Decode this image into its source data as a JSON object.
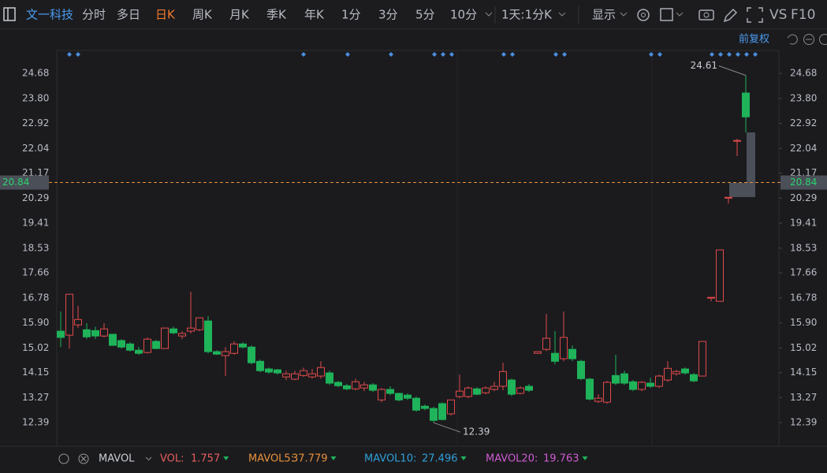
{
  "toolbar": {
    "symbol": "文一科技",
    "periods": [
      "分时",
      "多日",
      "日K",
      "周K",
      "月K",
      "季K",
      "年K",
      "1分",
      "3分",
      "5分",
      "10分"
    ],
    "selected_period": "日K",
    "multi_day": "1天:1分K",
    "display": "显示",
    "compare": "VS",
    "f10": "F10"
  },
  "adjust": "前复权",
  "indicator_bar": {
    "name": "MAVOL",
    "items": [
      {
        "label": "VOL:",
        "value": "1.757",
        "color": "#e85d5d"
      },
      {
        "label": "MAVOL5:",
        "value": "37.779",
        "color": "#e8903c"
      },
      {
        "label": "MAVOL10:",
        "value": "27.496",
        "color": "#2fa0d8"
      },
      {
        "label": "MAVOL20:",
        "value": "19.763",
        "color": "#cf5ad0"
      }
    ]
  },
  "chart_data": {
    "type": "candlestick",
    "categories": [
      null,
      null,
      null,
      null,
      null,
      null,
      null,
      null,
      null,
      null,
      null,
      null,
      null,
      null,
      null,
      null,
      null,
      null,
      null,
      null,
      null,
      null,
      null,
      null,
      null,
      null,
      null,
      null,
      null,
      null,
      null,
      null,
      null,
      null,
      null,
      null,
      null,
      null,
      null,
      null,
      null,
      null,
      null,
      null,
      null,
      null,
      null,
      null,
      null,
      null,
      null,
      null,
      null,
      null,
      null,
      null,
      null,
      null,
      null,
      null,
      null,
      null,
      null,
      null,
      null,
      null,
      null,
      null,
      null,
      null,
      null,
      null,
      null,
      null,
      null,
      null,
      null,
      null,
      null,
      null
    ],
    "open": [
      15.61,
      15.47,
      15.83,
      15.66,
      15.63,
      15.44,
      15.5,
      15.28,
      15.16,
      14.94,
      14.86,
      15.25,
      15.0,
      15.69,
      15.44,
      15.61,
      15.66,
      15.97,
      14.89,
      14.75,
      14.83,
      15.16,
      15.05,
      14.55,
      14.28,
      14.25,
      14.0,
      13.92,
      14.05,
      14.0,
      14.03,
      14.14,
      13.81,
      13.69,
      13.58,
      13.61,
      13.72,
      13.19,
      13.56,
      13.42,
      13.36,
      13.25,
      12.97,
      12.89,
      13.06,
      12.7,
      13.31,
      13.31,
      13.58,
      13.44,
      13.56,
      13.67,
      13.89,
      13.42,
      13.67,
      14.83,
      14.97,
      14.83,
      14.64,
      14.97,
      14.55,
      13.92,
      13.14,
      13.11,
      14.05,
      14.11,
      13.83,
      13.56,
      13.78,
      13.67,
      13.89,
      14.11,
      14.28,
      14.08,
      14.03,
      16.78,
      16.66,
      20.29,
      22.32,
      23.99
    ],
    "high": [
      16.3,
      16.91,
      16.5,
      15.89,
      15.77,
      15.89,
      15.5,
      15.33,
      15.22,
      15.05,
      15.39,
      15.3,
      15.72,
      15.77,
      15.61,
      17.0,
      16.08,
      16.14,
      14.94,
      15.05,
      15.25,
      15.22,
      15.11,
      14.61,
      14.33,
      14.28,
      14.22,
      14.22,
      14.33,
      14.28,
      14.55,
      14.22,
      13.86,
      13.75,
      13.94,
      13.83,
      13.78,
      13.61,
      13.67,
      13.44,
      13.42,
      13.31,
      13.03,
      12.95,
      13.11,
      13.19,
      14.08,
      13.67,
      13.64,
      13.67,
      13.83,
      14.5,
      13.94,
      13.67,
      13.75,
      14.89,
      16.22,
      15.61,
      16.3,
      15.11,
      14.61,
      13.97,
      13.39,
      13.86,
      14.78,
      14.22,
      13.89,
      13.86,
      13.97,
      14.08,
      14.55,
      14.25,
      14.33,
      14.14,
      15.25,
      16.8,
      18.47,
      20.32,
      22.38,
      24.61
    ],
    "low": [
      15.05,
      15.0,
      15.72,
      15.33,
      15.33,
      15.39,
      15.11,
      15.0,
      14.89,
      14.78,
      14.83,
      14.97,
      15.0,
      15.5,
      15.33,
      15.53,
      15.61,
      14.83,
      14.78,
      14.03,
      14.78,
      15.0,
      14.44,
      14.17,
      14.11,
      14.08,
      13.89,
      13.89,
      14.0,
      13.94,
      13.94,
      13.72,
      13.64,
      13.53,
      13.53,
      13.5,
      13.47,
      13.11,
      13.36,
      13.14,
      13.19,
      12.78,
      12.83,
      12.39,
      12.47,
      12.64,
      13.25,
      13.25,
      13.36,
      13.39,
      13.5,
      13.53,
      13.33,
      13.39,
      13.47,
      14.83,
      14.91,
      14.44,
      14.55,
      14.55,
      13.89,
      13.17,
      13.08,
      13.06,
      13.72,
      13.72,
      13.5,
      13.5,
      13.61,
      13.61,
      13.83,
      14.05,
      14.08,
      13.81,
      14.03,
      16.66,
      16.66,
      20.1,
      21.77,
      22.6
    ],
    "close": [
      15.39,
      16.91,
      16.02,
      15.41,
      15.44,
      15.69,
      15.11,
      15.05,
      14.94,
      14.83,
      15.33,
      15.0,
      15.72,
      15.55,
      15.53,
      15.72,
      16.08,
      14.89,
      14.8,
      14.89,
      15.16,
      15.05,
      14.5,
      14.22,
      14.17,
      14.14,
      14.11,
      14.11,
      14.22,
      14.11,
      14.33,
      13.78,
      13.69,
      13.58,
      13.83,
      13.72,
      13.53,
      13.56,
      13.42,
      13.19,
      13.25,
      12.83,
      12.89,
      12.47,
      12.5,
      13.19,
      13.5,
      13.61,
      13.39,
      13.61,
      13.67,
      14.19,
      13.39,
      13.61,
      13.53,
      14.89,
      15.36,
      14.55,
      15.39,
      14.64,
      13.94,
      13.22,
      13.25,
      13.81,
      13.78,
      13.78,
      13.56,
      13.81,
      13.67,
      14.03,
      14.3,
      14.19,
      14.14,
      13.86,
      15.25,
      16.8,
      18.47,
      20.32,
      22.32,
      23.15
    ],
    "up_color": "#e04a4a",
    "down_color": "#1fb35a",
    "ylim": [
      11.59,
      25.46
    ],
    "yticks": [
      12.39,
      13.27,
      14.15,
      15.02,
      {
        "value": 15.9,
        "label": "15.90"
      },
      16.78,
      17.66,
      18.53,
      19.41,
      20.29,
      21.17,
      22.04,
      22.92,
      {
        "value": 23.8,
        "label": "23.80"
      },
      24.68
    ],
    "last_price": 20.84,
    "last_price_color": "#e8903c",
    "grid": false
  }
}
